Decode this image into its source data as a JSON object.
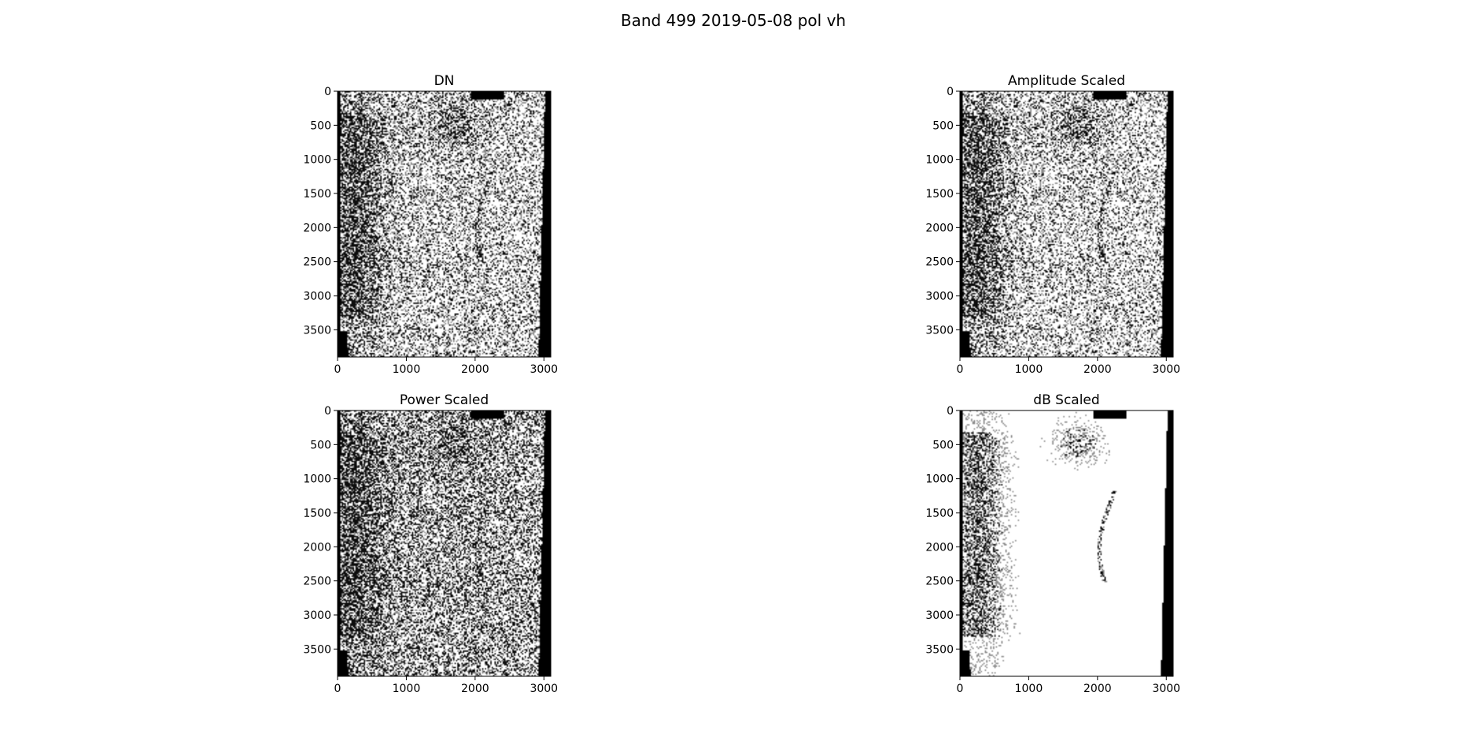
{
  "figure": {
    "suptitle": "Band 499 2019-05-08 pol vh"
  },
  "chart_data": [
    {
      "type": "heatmap",
      "title": "DN",
      "xlim": [
        0,
        3100
      ],
      "ylim": [
        3900,
        0
      ],
      "xticks": [
        0,
        1000,
        2000,
        3000
      ],
      "yticks": [
        0,
        500,
        1000,
        1500,
        2000,
        2500,
        3000,
        3500
      ],
      "brightness": 0.55,
      "contrast": 1.0
    },
    {
      "type": "heatmap",
      "title": "Amplitude Scaled",
      "xlim": [
        0,
        3100
      ],
      "ylim": [
        3900,
        0
      ],
      "xticks": [
        0,
        1000,
        2000,
        3000
      ],
      "yticks": [
        0,
        500,
        1000,
        1500,
        2000,
        2500,
        3000,
        3500
      ],
      "brightness": 0.58,
      "contrast": 1.0
    },
    {
      "type": "heatmap",
      "title": "Power Scaled",
      "xlim": [
        0,
        3100
      ],
      "ylim": [
        3900,
        0
      ],
      "xticks": [
        0,
        1000,
        2000,
        3000
      ],
      "yticks": [
        0,
        500,
        1000,
        1500,
        2000,
        2500,
        3000,
        3500
      ],
      "brightness": 0.45,
      "contrast": 1.1
    },
    {
      "type": "heatmap",
      "title": "dB Scaled",
      "xlim": [
        0,
        3100
      ],
      "ylim": [
        3900,
        0
      ],
      "xticks": [
        0,
        1000,
        2000,
        3000
      ],
      "yticks": [
        0,
        500,
        1000,
        1500,
        2000,
        2500,
        3000,
        3500
      ],
      "brightness": 0.85,
      "contrast": 0.8
    }
  ]
}
